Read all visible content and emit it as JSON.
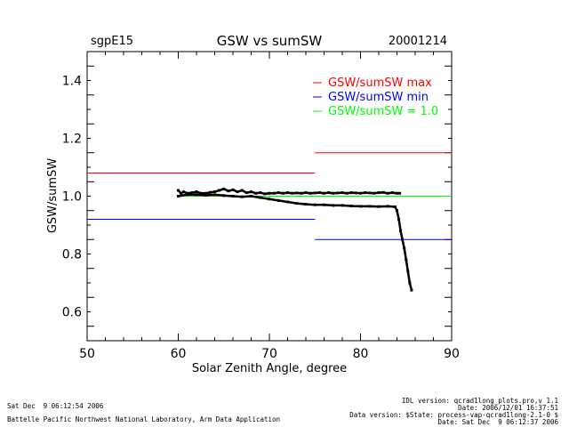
{
  "header": {
    "site": "sgpE15",
    "title": "GSW vs sumSW",
    "date": "20001214"
  },
  "footer": {
    "left_line1": "Sat Dec  9 06:12:54 2006",
    "left_line2": "Battelle Pacific Northwest National Laboratory, Arm Data Application",
    "right_line1": "IDL version: qcrad1long_plots.pro,v 1.1",
    "right_line2": "Date: 2006/12/01 16:37:51",
    "right_line3": "Data version: $State: process-vap-qcrad1long-2.1-0 $",
    "right_line4": "Date: Sat Dec  9 06:12:37 2006"
  },
  "chart_data": {
    "type": "line",
    "title": "GSW vs sumSW",
    "xlabel": "Solar Zenith Angle, degree",
    "ylabel": "GSW/sumSW",
    "xlim": [
      50,
      90
    ],
    "ylim": [
      0.5,
      1.5
    ],
    "x_ticks": [
      50,
      60,
      70,
      80,
      90
    ],
    "y_ticks": [
      0.6,
      0.8,
      1.0,
      1.2,
      1.4
    ],
    "grid": false,
    "legend_position": "top-right",
    "colors": {
      "max": "#ff0000",
      "min": "#0000ff",
      "unity": "#00ff00",
      "data": "#000000"
    },
    "series": [
      {
        "name": "GSW/sumSW max",
        "color": "#ff0000",
        "segments": [
          {
            "x": [
              50,
              75
            ],
            "y": [
              1.08,
              1.08
            ]
          },
          {
            "x": [
              75,
              90
            ],
            "y": [
              1.15,
              1.15
            ]
          }
        ]
      },
      {
        "name": "GSW/sumSW min",
        "color": "#0000ff",
        "segments": [
          {
            "x": [
              50,
              75
            ],
            "y": [
              0.92,
              0.92
            ]
          },
          {
            "x": [
              75,
              90
            ],
            "y": [
              0.85,
              0.85
            ]
          }
        ]
      },
      {
        "name": "GSW/sumSW = 1.0",
        "color": "#00ff00",
        "segments": [
          {
            "x": [
              60,
              90
            ],
            "y": [
              1.0,
              1.0
            ]
          }
        ]
      }
    ],
    "data_points": {
      "upper_branch": {
        "x": [
          60.0,
          60.3,
          60.6,
          61.0,
          61.5,
          62.0,
          62.5,
          63.0,
          63.5,
          64.0,
          64.5,
          65.0,
          65.5,
          66.0,
          66.5,
          67.0,
          67.5,
          68.0,
          68.5,
          69.0,
          69.5,
          70.0,
          70.5,
          71.0,
          71.5,
          72.0,
          72.5,
          73.0,
          73.5,
          74.0,
          74.5,
          75.0,
          75.5,
          76.0,
          76.5,
          77.0,
          77.5,
          78.0,
          78.5,
          79.0,
          79.5,
          80.0,
          80.5,
          81.0,
          81.5,
          82.0,
          82.5,
          83.0,
          83.5,
          84.0,
          84.3
        ],
        "y": [
          1.02,
          1.01,
          1.015,
          1.01,
          1.012,
          1.015,
          1.01,
          1.01,
          1.013,
          1.015,
          1.02,
          1.025,
          1.018,
          1.022,
          1.015,
          1.02,
          1.012,
          1.015,
          1.01,
          1.012,
          1.008,
          1.01,
          1.01,
          1.012,
          1.01,
          1.012,
          1.01,
          1.011,
          1.01,
          1.012,
          1.01,
          1.011,
          1.012,
          1.01,
          1.012,
          1.01,
          1.011,
          1.012,
          1.01,
          1.012,
          1.011,
          1.01,
          1.012,
          1.011,
          1.01,
          1.012,
          1.013,
          1.01,
          1.012,
          1.01,
          1.01
        ]
      },
      "lower_branch": {
        "x": [
          60.0,
          61.0,
          62.0,
          63.0,
          64.0,
          65.0,
          66.0,
          67.0,
          68.0,
          69.0,
          70.0,
          71.0,
          72.0,
          73.0,
          74.0,
          75.0,
          76.0,
          77.0,
          78.0,
          79.0,
          80.0,
          81.0,
          82.0,
          83.0,
          83.8,
          84.0,
          84.2,
          84.4,
          84.6,
          84.8,
          85.0,
          85.2,
          85.4,
          85.6
        ],
        "y": [
          1.0,
          1.005,
          1.005,
          1.003,
          1.005,
          1.002,
          1.0,
          0.998,
          1.0,
          0.995,
          0.99,
          0.985,
          0.98,
          0.975,
          0.972,
          0.97,
          0.97,
          0.968,
          0.968,
          0.966,
          0.965,
          0.965,
          0.964,
          0.965,
          0.963,
          0.95,
          0.92,
          0.88,
          0.85,
          0.82,
          0.78,
          0.74,
          0.7,
          0.675
        ]
      }
    }
  }
}
